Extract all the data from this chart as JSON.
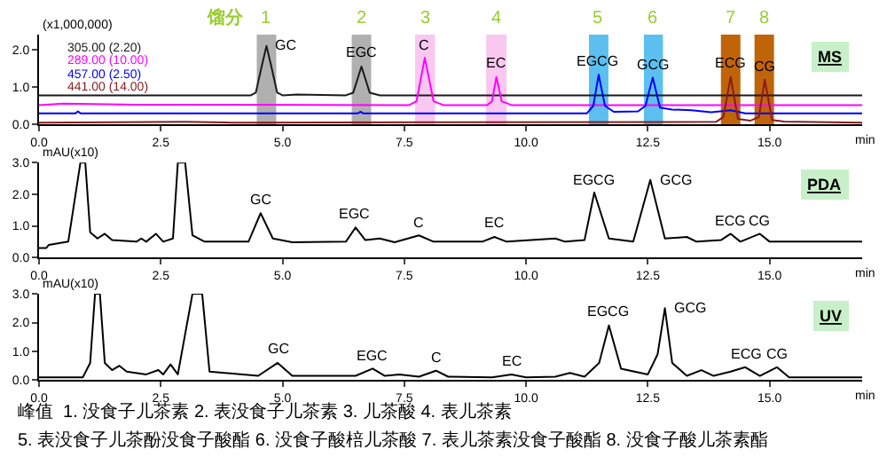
{
  "chart_data": [
    {
      "type": "line",
      "title": "MS",
      "xlabel": "min",
      "ylabel": "(x1,000,000)",
      "legend": "top left",
      "xlim": [
        0,
        16.9
      ],
      "ylim": [
        0,
        2.4
      ],
      "xticks": [
        {
          "value": 0,
          "label": "0.0"
        },
        2.5,
        {
          "value": 5,
          "label": "5.0"
        },
        7.5,
        {
          "value": 10,
          "label": "10.0"
        },
        12.5,
        {
          "value": 15,
          "label": "15.0"
        }
      ],
      "yticks": [
        {
          "value": 0,
          "label": "0.0"
        },
        {
          "value": 1,
          "label": "1.0"
        },
        {
          "value": 2,
          "label": "2.0"
        }
      ],
      "series": [
        {
          "name": "305.00 (2.20)",
          "color": "#1a1a1a",
          "x": [
            0,
            4.35,
            4.45,
            4.58,
            4.67,
            4.76,
            4.89,
            5.0,
            5.3,
            6.3,
            6.45,
            6.62,
            6.79,
            7.0,
            16.9
          ],
          "values": [
            0.78,
            0.78,
            0.85,
            1.6,
            2.1,
            1.6,
            0.85,
            0.78,
            0.8,
            0.78,
            0.85,
            1.55,
            0.85,
            0.78,
            0.78
          ]
        },
        {
          "name": "289.00 (10.00)",
          "color": "#ff00ff",
          "x": [
            0,
            0.5,
            2.0,
            7.6,
            7.75,
            7.92,
            8.1,
            8.3,
            9.2,
            9.3,
            9.39,
            9.5,
            9.7,
            16.9
          ],
          "values": [
            0.52,
            0.56,
            0.53,
            0.52,
            0.62,
            1.78,
            0.62,
            0.52,
            0.52,
            0.62,
            1.27,
            0.62,
            0.52,
            0.52
          ]
        },
        {
          "name": "457.00 (2.50)",
          "color": "#0000ff",
          "x": [
            0,
            0.75,
            0.8,
            0.85,
            6.55,
            6.6,
            6.65,
            11.25,
            11.38,
            11.49,
            11.62,
            11.8,
            12.3,
            12.45,
            12.6,
            12.75,
            13.0,
            13.4,
            13.8,
            14.2,
            14.5,
            16.9
          ],
          "values": [
            0.3,
            0.3,
            0.35,
            0.3,
            0.3,
            0.34,
            0.3,
            0.3,
            0.5,
            1.33,
            0.5,
            0.34,
            0.35,
            0.5,
            1.25,
            0.45,
            0.4,
            0.38,
            0.33,
            0.38,
            0.3,
            0.3
          ]
        },
        {
          "name": "441.00 (14.00)",
          "color": "#8b1a1a",
          "x": [
            0,
            3.0,
            4.0,
            8.0,
            13.9,
            14.05,
            14.2,
            14.35,
            14.6,
            14.78,
            14.9,
            15.05,
            15.3,
            16.9
          ],
          "values": [
            0.05,
            0.07,
            0.05,
            0.06,
            0.07,
            0.2,
            1.27,
            0.15,
            0.1,
            0.2,
            1.2,
            0.12,
            0.08,
            0.05
          ]
        }
      ],
      "bands": [
        {
          "axis": "x",
          "from": 4.47,
          "to": 4.87,
          "label": "1",
          "color": "#b0b0b0"
        },
        {
          "axis": "x",
          "from": 6.42,
          "to": 6.82,
          "label": "2",
          "color": "#b0b0b0"
        },
        {
          "axis": "x",
          "from": 7.72,
          "to": 8.13,
          "label": "3",
          "color": "#f9c8f0"
        },
        {
          "axis": "x",
          "from": 9.18,
          "to": 9.6,
          "label": "4",
          "color": "#f9c8f0"
        },
        {
          "axis": "x",
          "from": 11.29,
          "to": 11.69,
          "label": "5",
          "color": "#5bc0f0"
        },
        {
          "axis": "x",
          "from": 12.42,
          "to": 12.81,
          "label": "6",
          "color": "#5bc0f0"
        },
        {
          "axis": "x",
          "from": 14.0,
          "to": 14.4,
          "label": "7",
          "color": "#c0640a"
        },
        {
          "axis": "x",
          "from": 14.69,
          "to": 15.09,
          "label": "8",
          "color": "#c0640a"
        }
      ],
      "annotations": [
        "馏分",
        {
          "text": "GC",
          "x": 4.67,
          "y": 2.1
        },
        {
          "text": "EGC",
          "x": 6.62,
          "y": 1.55
        },
        {
          "text": "C",
          "x": 7.92,
          "y": 1.78
        },
        {
          "text": "EC",
          "x": 9.39,
          "y": 1.27
        },
        {
          "text": "EGCG",
          "x": 11.49,
          "y": 1.33
        },
        {
          "text": "GCG",
          "x": 12.6,
          "y": 1.25
        },
        {
          "text": "ECG",
          "x": 14.2,
          "y": 1.27
        },
        {
          "text": "CG",
          "x": 14.9,
          "y": 1.2
        }
      ]
    },
    {
      "type": "line",
      "title": "PDA",
      "xlabel": "min",
      "ylabel": "mAU(x10)",
      "xlim": [
        0,
        16.9
      ],
      "ylim": [
        0,
        3.0
      ],
      "xticks": [
        {
          "value": 0,
          "label": "0.0"
        },
        2.5,
        {
          "value": 5,
          "label": "5.0"
        },
        7.5,
        {
          "value": 10,
          "label": "10.0"
        },
        12.5,
        {
          "value": 15,
          "label": "15.0"
        }
      ],
      "yticks": [
        {
          "value": 0,
          "label": "0.0"
        },
        {
          "value": 1,
          "label": "1.0"
        },
        {
          "value": 2,
          "label": "2.0"
        },
        {
          "value": 3,
          "label": "3.0"
        }
      ],
      "series": [
        {
          "color": "#000000",
          "x": [
            0,
            0.15,
            0.2,
            0.6,
            0.75,
            0.85,
            0.95,
            1.05,
            1.2,
            1.35,
            1.5,
            2.0,
            2.1,
            2.2,
            2.4,
            2.55,
            2.75,
            2.85,
            3.0,
            3.15,
            3.4,
            4.3,
            4.55,
            4.8,
            5.2,
            6.3,
            6.5,
            6.7,
            7.0,
            7.3,
            7.8,
            8.1,
            9.1,
            9.35,
            9.6,
            10.6,
            10.8,
            11.2,
            11.4,
            11.7,
            12.2,
            12.55,
            12.85,
            13.3,
            13.5,
            14.0,
            14.2,
            14.4,
            14.8,
            15.0,
            16.9
          ],
          "values": [
            0.3,
            0.3,
            0.4,
            0.5,
            2.0,
            3.0,
            3.0,
            0.8,
            0.6,
            0.75,
            0.55,
            0.5,
            0.6,
            0.5,
            0.75,
            0.5,
            0.6,
            3.0,
            3.0,
            0.7,
            0.5,
            0.5,
            1.4,
            0.6,
            0.48,
            0.5,
            0.95,
            0.55,
            0.6,
            0.48,
            0.7,
            0.5,
            0.5,
            0.65,
            0.5,
            0.6,
            0.5,
            0.55,
            2.05,
            0.6,
            0.5,
            2.45,
            0.6,
            0.65,
            0.5,
            0.55,
            0.75,
            0.5,
            0.75,
            0.5,
            0.5
          ]
        }
      ],
      "annotations": [
        {
          "text": "GC",
          "x": 4.55,
          "y": 1.4
        },
        {
          "text": "EGC",
          "x": 6.5,
          "y": 0.95
        },
        {
          "text": "C",
          "x": 7.8,
          "y": 0.7
        },
        {
          "text": "EC",
          "x": 9.35,
          "y": 0.65
        },
        {
          "text": "EGCG",
          "x": 11.4,
          "y": 2.05
        },
        {
          "text": "GCG",
          "x": 12.55,
          "y": 2.45
        },
        {
          "text": "ECG",
          "x": 14.2,
          "y": 0.75
        },
        {
          "text": "CG",
          "x": 14.8,
          "y": 0.75
        }
      ]
    },
    {
      "type": "line",
      "title": "UV",
      "xlabel": "min",
      "ylabel": "mAU(x10)",
      "xlim": [
        0,
        16.9
      ],
      "ylim": [
        0,
        3.0
      ],
      "xticks": [
        {
          "value": 0,
          "label": "0.0"
        },
        2.5,
        {
          "value": 5,
          "label": "5.0"
        },
        7.5,
        {
          "value": 10,
          "label": "10.0"
        },
        12.5,
        {
          "value": 15,
          "label": "15.0"
        }
      ],
      "yticks": [
        {
          "value": 0,
          "label": "0.0"
        },
        {
          "value": 1,
          "label": "1.0"
        },
        {
          "value": 2,
          "label": "2.0"
        },
        {
          "value": 3,
          "label": "3.0"
        }
      ],
      "series": [
        {
          "color": "#000000",
          "x": [
            0,
            0.9,
            1.05,
            1.15,
            1.25,
            1.35,
            1.5,
            1.65,
            1.8,
            2.2,
            2.45,
            2.55,
            2.7,
            2.85,
            3.15,
            3.25,
            3.35,
            3.5,
            4.5,
            4.9,
            5.2,
            6.5,
            6.85,
            7.1,
            7.4,
            7.8,
            8.15,
            8.4,
            9.3,
            9.7,
            10.0,
            10.6,
            10.9,
            11.2,
            11.5,
            11.7,
            11.95,
            12.5,
            12.7,
            12.85,
            13.0,
            13.3,
            13.6,
            13.85,
            14.2,
            14.5,
            14.8,
            15.15,
            15.4,
            16.9
          ],
          "values": [
            0.1,
            0.1,
            0.6,
            3.0,
            3.0,
            0.6,
            0.35,
            0.5,
            0.3,
            0.2,
            0.35,
            0.2,
            0.55,
            0.2,
            3.0,
            3.0,
            3.0,
            0.3,
            0.15,
            0.6,
            0.15,
            0.15,
            0.4,
            0.15,
            0.2,
            0.12,
            0.33,
            0.12,
            0.1,
            0.2,
            0.1,
            0.12,
            0.25,
            0.12,
            0.6,
            1.9,
            0.4,
            0.2,
            0.9,
            2.5,
            0.6,
            0.15,
            0.35,
            0.15,
            0.3,
            0.45,
            0.15,
            0.45,
            0.1,
            0.1
          ]
        }
      ],
      "annotations": [
        {
          "text": "GC",
          "x": 4.9,
          "y": 0.6
        },
        {
          "text": "EGC",
          "x": 6.85,
          "y": 0.4
        },
        {
          "text": "C",
          "x": 8.15,
          "y": 0.33
        },
        {
          "text": "EC",
          "x": 9.7,
          "y": 0.2
        },
        {
          "text": "EGCG",
          "x": 11.7,
          "y": 1.9
        },
        {
          "text": "GCG",
          "x": 12.85,
          "y": 2.5
        },
        {
          "text": "ECG",
          "x": 14.5,
          "y": 0.45
        },
        {
          "text": "CG",
          "x": 15.15,
          "y": 0.45
        },
        "峰值  1. 没食子儿茶素 2. 表没食子儿茶素 3. 儿茶酸 4. 表儿茶素",
        "5. 表没食子儿茶酚没食子酸酯 6. 没食子酸棓儿茶酸 7. 表儿茶素没食子酸酯 8. 没食子酸儿茶素酯"
      ]
    }
  ]
}
